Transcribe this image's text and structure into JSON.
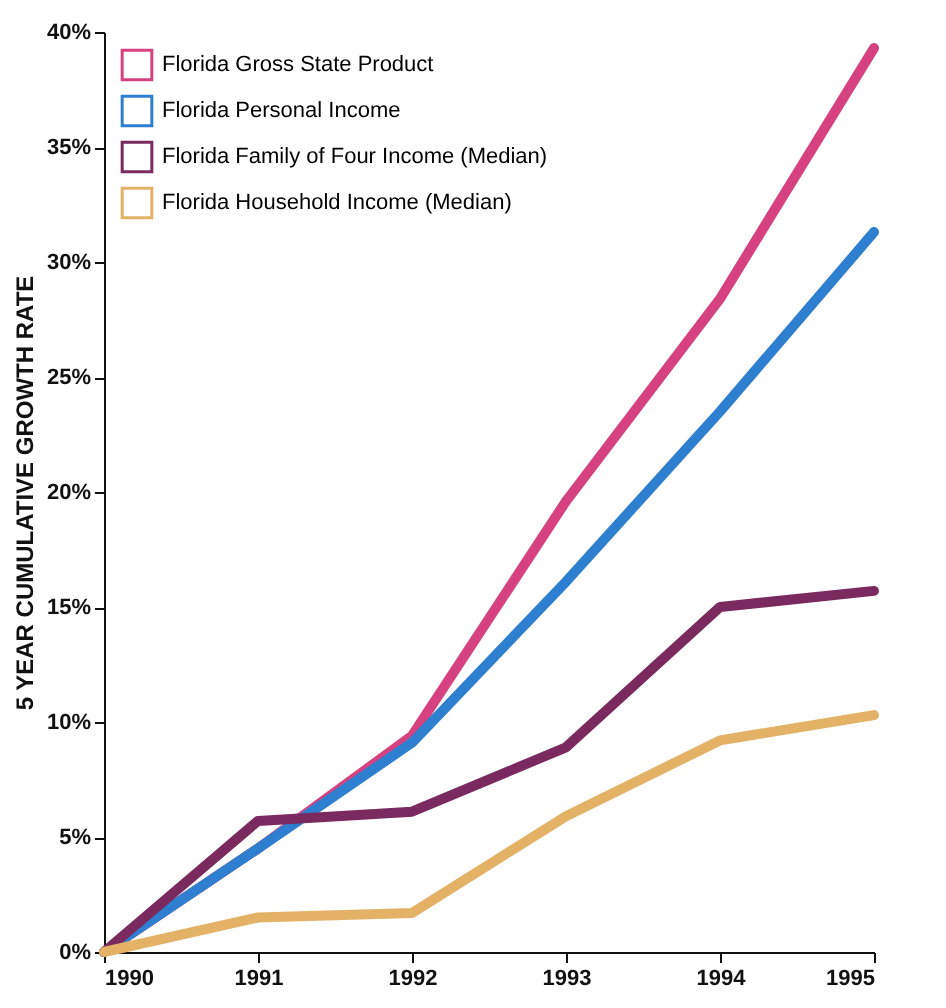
{
  "chart_data": {
    "type": "line",
    "ylabel": "5 YEAR CUMULATIVE GROWTH RATE",
    "x": [
      1990,
      1991,
      1992,
      1993,
      1994,
      1995
    ],
    "xlim": [
      1990,
      1995
    ],
    "xticks": [
      1990,
      1991,
      1992,
      1993,
      1994,
      1995
    ],
    "ylim": [
      0,
      40
    ],
    "yticks": [
      {
        "value": 0,
        "label": "0%"
      },
      {
        "value": 5,
        "label": "5%"
      },
      {
        "value": 10,
        "label": "10%"
      },
      {
        "value": 15,
        "label": "15%"
      },
      {
        "value": 20,
        "label": "20%"
      },
      {
        "value": 25,
        "label": "25%"
      },
      {
        "value": 30,
        "label": "30%"
      },
      {
        "value": 35,
        "label": "35%"
      },
      {
        "value": 40,
        "label": "40%"
      }
    ],
    "grid": false,
    "legend": "top left",
    "marker": "none",
    "line_style": "solid",
    "series": [
      {
        "name": "Florida Gross State Product",
        "color": "#d6427f",
        "values": [
          0,
          4.5,
          9.4,
          19.6,
          28.4,
          39.3
        ]
      },
      {
        "name": "Florida Personal Income",
        "color": "#2f7fd0",
        "values": [
          0,
          4.5,
          9.1,
          16.1,
          23.5,
          31.3
        ]
      },
      {
        "name": "Florida Family of Four Income (Median)",
        "color": "#7a2a5e",
        "values": [
          0,
          5.7,
          6.1,
          8.9,
          15.0,
          15.7
        ]
      },
      {
        "name": "Florida Household Income (Median)",
        "color": "#e3b266",
        "values": [
          0,
          1.5,
          1.7,
          5.9,
          9.2,
          10.3
        ]
      }
    ]
  }
}
